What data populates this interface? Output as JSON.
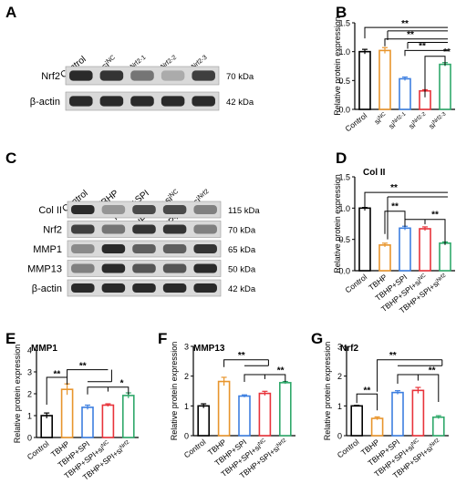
{
  "panels": [
    "A",
    "B",
    "C",
    "D",
    "E",
    "F",
    "G"
  ],
  "blot_a": {
    "lanes": [
      "Control",
      "si NC",
      "si Nrf2-1",
      "si Nrf2-2",
      "si Nrf2-3"
    ],
    "rows": [
      {
        "label": "Nrf2",
        "kda": "70 kDa",
        "bands": [
          0.9,
          0.85,
          0.55,
          0.3,
          0.8
        ]
      },
      {
        "label": "β-actin",
        "kda": "42 kDa",
        "bands": [
          0.9,
          0.9,
          0.9,
          0.9,
          0.9
        ]
      }
    ]
  },
  "blot_c": {
    "lanes": [
      "Control",
      "TBHP",
      "TBHP+SPI",
      "TBHP+SPI+si NC",
      "TBHP+SPI+si Nrf2"
    ],
    "rows": [
      {
        "label": "Col II",
        "kda": "115 kDa",
        "bands": [
          0.9,
          0.4,
          0.75,
          0.75,
          0.5
        ]
      },
      {
        "label": "Nrf2",
        "kda": "70 kDa",
        "bands": [
          0.8,
          0.55,
          0.85,
          0.85,
          0.5
        ]
      },
      {
        "label": "MMP1",
        "kda": "65 kDa",
        "bands": [
          0.45,
          0.9,
          0.65,
          0.65,
          0.85
        ]
      },
      {
        "label": "MMP13",
        "kda": "50 kDa",
        "bands": [
          0.5,
          0.9,
          0.7,
          0.7,
          0.9
        ]
      },
      {
        "label": "β-actin",
        "kda": "42 kDa",
        "bands": [
          0.9,
          0.9,
          0.9,
          0.9,
          0.9
        ]
      }
    ]
  },
  "chart_data": [
    {
      "panel": "B",
      "type": "bar",
      "title": "",
      "ylabel": "Relative protein expression",
      "categories": [
        "Control",
        "si NC",
        "si Nrf2-1",
        "si Nrf2-2",
        "si Nrf2-3"
      ],
      "values": [
        1.0,
        1.02,
        0.53,
        0.32,
        0.78
      ],
      "errors": [
        0.04,
        0.05,
        0.03,
        0.02,
        0.03
      ],
      "colors": [
        "#000000",
        "#e8952c",
        "#3d7fe0",
        "#e8333a",
        "#2fa86a"
      ],
      "ylim": [
        0,
        1.5
      ],
      "yticks": [
        "0.0",
        "0.5",
        "1.0",
        "1.5"
      ],
      "significance": [
        "**",
        "**",
        "**",
        "**"
      ]
    },
    {
      "panel": "D",
      "type": "bar",
      "title": "Col II",
      "ylabel": "Relative protein expression",
      "categories": [
        "Control",
        "TBHP",
        "TBHP+SPI",
        "TBHP+SPI+si NC",
        "TBHP+SPI+si Nrf2"
      ],
      "values": [
        1.0,
        0.41,
        0.68,
        0.67,
        0.44
      ],
      "errors": [
        0.01,
        0.03,
        0.03,
        0.03,
        0.02
      ],
      "colors": [
        "#000000",
        "#e8952c",
        "#3d7fe0",
        "#e8333a",
        "#2fa86a"
      ],
      "ylim": [
        0,
        1.5
      ],
      "yticks": [
        "0.0",
        "0.5",
        "1.0",
        "1.5"
      ],
      "significance": [
        "**",
        "**",
        "**"
      ]
    },
    {
      "panel": "E",
      "type": "bar",
      "title": "MMP1",
      "ylabel": "Relative protein expression",
      "categories": [
        "Control",
        "TBHP",
        "TBHP+SPI",
        "TBHP+SPI+si NC",
        "TBHP+SPI+si Nrf2"
      ],
      "values": [
        1.0,
        2.2,
        1.38,
        1.48,
        1.92
      ],
      "errors": [
        0.12,
        0.25,
        0.1,
        0.06,
        0.12
      ],
      "colors": [
        "#000000",
        "#e8952c",
        "#3d7fe0",
        "#e8333a",
        "#2fa86a"
      ],
      "ylim": [
        0,
        4
      ],
      "yticks": [
        "0",
        "1",
        "2",
        "3",
        "4"
      ],
      "significance": [
        "**",
        "**",
        "*"
      ]
    },
    {
      "panel": "F",
      "type": "bar",
      "title": "MMP13",
      "ylabel": "Relative protein expression",
      "categories": [
        "Control",
        "TBHP",
        "TBHP+SPI",
        "TBHP+SPI+si NC",
        "TBHP+SPI+si Nrf2"
      ],
      "values": [
        1.0,
        1.82,
        1.33,
        1.42,
        1.78
      ],
      "errors": [
        0.07,
        0.14,
        0.04,
        0.07,
        0.04
      ],
      "colors": [
        "#000000",
        "#e8952c",
        "#3d7fe0",
        "#e8333a",
        "#2fa86a"
      ],
      "ylim": [
        0,
        3
      ],
      "yticks": [
        "0",
        "1",
        "2",
        "3"
      ],
      "significance": [
        "**",
        "**"
      ]
    },
    {
      "panel": "G",
      "type": "bar",
      "title": "Nrf2",
      "ylabel": "Relative protein expression",
      "categories": [
        "Control",
        "TBHP",
        "TBHP+SPI",
        "TBHP+SPI+si NC",
        "TBHP+SPI+si Nrf2"
      ],
      "values": [
        1.0,
        0.58,
        1.45,
        1.52,
        0.62
      ],
      "errors": [
        0.02,
        0.05,
        0.06,
        0.1,
        0.05
      ],
      "colors": [
        "#000000",
        "#e8952c",
        "#3d7fe0",
        "#e8333a",
        "#2fa86a"
      ],
      "ylim": [
        0,
        3
      ],
      "yticks": [
        "0",
        "1",
        "2",
        "3"
      ],
      "significance": [
        "**",
        "**",
        "**"
      ]
    }
  ]
}
